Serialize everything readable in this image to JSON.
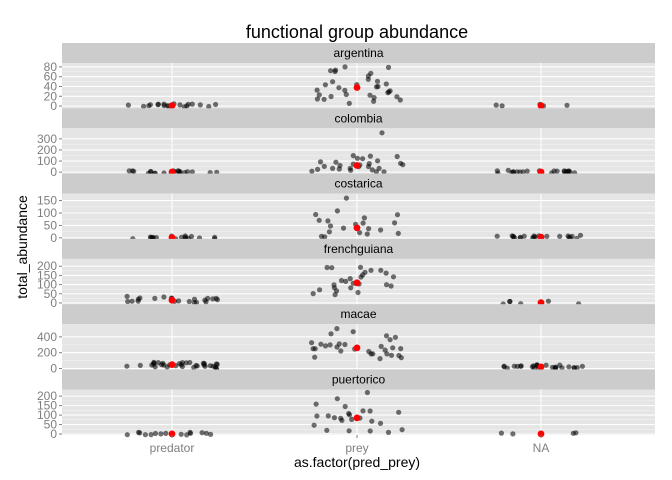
{
  "chart_data": {
    "type": "scatter",
    "title": "functional group abundance",
    "xlabel": "as.factor(pred_prey)",
    "ylabel": "total_abundance",
    "categories": [
      "predator",
      "prey",
      "NA"
    ],
    "grid": true,
    "background_color": "#e5e5e5",
    "strip_color": "#cccccc",
    "point_color": "#000000",
    "mean_color": "#ff0000",
    "panels": [
      {
        "name": "argentina",
        "ylim": [
          -5,
          88
        ],
        "yticks": [
          0,
          20,
          40,
          60,
          80
        ],
        "means": [
          1,
          38,
          1
        ],
        "points": [
          [
            1,
            2,
            1,
            1,
            1,
            2,
            1,
            1,
            1,
            2,
            1,
            1,
            1,
            1,
            2,
            1,
            2,
            1,
            1
          ],
          [
            68,
            72,
            80,
            74,
            55,
            48,
            40,
            35,
            30,
            25,
            20,
            15,
            12,
            10,
            38,
            42,
            60,
            45,
            28,
            22,
            18,
            35,
            50,
            65,
            78,
            30,
            25,
            42,
            15,
            20,
            34,
            8
          ],
          [
            1,
            2,
            1,
            1,
            2
          ]
        ]
      },
      {
        "name": "colombia",
        "ylim": [
          -15,
          395
        ],
        "yticks": [
          0,
          100,
          200,
          300
        ],
        "means": [
          1,
          60,
          1
        ],
        "points": [
          [
            1,
            2,
            1,
            3,
            1,
            2,
            1,
            1,
            2,
            1,
            3,
            1,
            2,
            1,
            1,
            2,
            1,
            1,
            2,
            1
          ],
          [
            345,
            150,
            120,
            100,
            90,
            80,
            70,
            60,
            50,
            40,
            30,
            20,
            10,
            5,
            85,
            110,
            130,
            65,
            45,
            25,
            15,
            35,
            55,
            75,
            95,
            140,
            20,
            40
          ],
          [
            1,
            2,
            3,
            1,
            2,
            4,
            1,
            2,
            5,
            1,
            3,
            2,
            1,
            1,
            2,
            3,
            1,
            2,
            4,
            1,
            2,
            1
          ]
        ]
      },
      {
        "name": "costarica",
        "ylim": [
          -5,
          178
        ],
        "yticks": [
          0,
          50,
          100,
          150
        ],
        "means": [
          1,
          40,
          3
        ],
        "points": [
          [
            1,
            1,
            2,
            1,
            1,
            2,
            1,
            1,
            2,
            1,
            1,
            2,
            1,
            1,
            2,
            1,
            1,
            1
          ],
          [
            165,
            110,
            90,
            80,
            70,
            60,
            50,
            40,
            30,
            20,
            15,
            10,
            5,
            55,
            75,
            95,
            65,
            45,
            35,
            25
          ],
          [
            2,
            3,
            5,
            4,
            2,
            3,
            6,
            2,
            4,
            3,
            5,
            2,
            3,
            4,
            2,
            3,
            5,
            6,
            4,
            3,
            2
          ]
        ]
      },
      {
        "name": "frenchguiana",
        "ylim": [
          -8,
          240
        ],
        "yticks": [
          0,
          50,
          100,
          150,
          200
        ],
        "means": [
          15,
          110,
          1
        ],
        "points": [
          [
            10,
            15,
            20,
            25,
            15,
            10,
            20,
            30,
            15,
            25,
            10,
            20,
            15,
            25,
            30,
            20,
            15,
            10,
            20,
            25,
            15,
            10
          ],
          [
            200,
            190,
            180,
            150,
            140,
            130,
            120,
            110,
            100,
            90,
            80,
            70,
            60,
            50,
            45,
            170,
            160,
            75,
            85,
            95,
            105,
            125,
            135,
            200,
            185
          ],
          [
            1,
            2,
            1,
            3,
            1,
            2
          ]
        ]
      },
      {
        "name": "macae",
        "ylim": [
          -15,
          560
        ],
        "yticks": [
          0,
          200,
          400
        ],
        "means": [
          50,
          260,
          20
        ],
        "points": [
          [
            10,
            20,
            30,
            40,
            50,
            60,
            70,
            80,
            20,
            30,
            40,
            50,
            60,
            70,
            10,
            20,
            30,
            40,
            50,
            60,
            20,
            30,
            40,
            50,
            60,
            30,
            20,
            40,
            50,
            60,
            70,
            80,
            10,
            20
          ],
          [
            520,
            450,
            400,
            350,
            320,
            300,
            280,
            260,
            240,
            220,
            200,
            180,
            160,
            150,
            140,
            120,
            250,
            270,
            290,
            310,
            330,
            230,
            210,
            190,
            170,
            380,
            420,
            280,
            300,
            240
          ],
          [
            10,
            20,
            30,
            5,
            15,
            25,
            35,
            10,
            20,
            30,
            40,
            15,
            25,
            35,
            10,
            20,
            30,
            5,
            15,
            25,
            10,
            20,
            30,
            40,
            15,
            25
          ]
        ]
      },
      {
        "name": "puertorico",
        "ylim": [
          -5,
          235
        ],
        "yticks": [
          0,
          50,
          100,
          150,
          200
        ],
        "means": [
          1,
          85,
          1
        ],
        "points": [
          [
            1,
            2,
            1,
            2,
            1,
            1,
            2,
            1,
            2,
            1,
            1,
            2,
            1,
            1,
            2
          ],
          [
            215,
            180,
            150,
            130,
            120,
            110,
            100,
            90,
            80,
            70,
            60,
            50,
            40,
            30,
            20,
            15,
            10,
            5,
            100,
            120,
            140,
            95,
            85,
            75
          ],
          [
            1,
            2,
            1,
            2
          ]
        ]
      }
    ]
  }
}
